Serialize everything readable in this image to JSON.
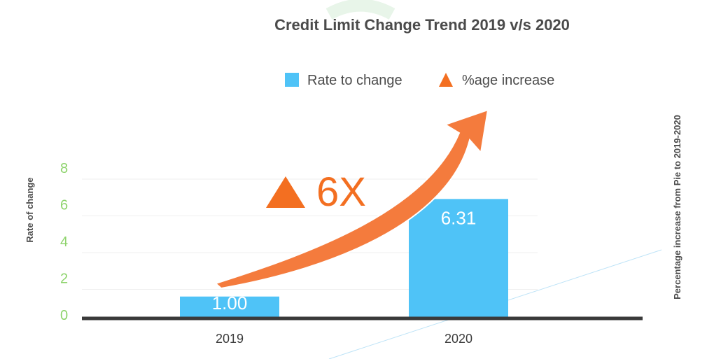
{
  "chart_data": {
    "type": "bar",
    "title": "Credit Limit Change Trend 2019 v/s 2020",
    "categories": [
      "2019",
      "2020"
    ],
    "series": [
      {
        "name": "Rate to change",
        "values": [
          1.0,
          6.31
        ],
        "labels": [
          "1.00",
          "6.31"
        ],
        "color": "#4fc3f7"
      }
    ],
    "legend": [
      {
        "label": "Rate to change",
        "marker": "square",
        "color": "#4fc3f7"
      },
      {
        "label": "%age increase",
        "marker": "triangle",
        "color": "#f36f21"
      }
    ],
    "ylabel": "Rate of change",
    "y2label": "Percentage increase from Pie to 2019-2020",
    "yticks": [
      "0",
      "2",
      "4",
      "6",
      "8"
    ],
    "ylim": [
      0,
      8
    ],
    "annotation": {
      "text": "6X",
      "marker": "triangle-up-icon",
      "color": "#f36f21"
    },
    "legend_position": "top-right"
  }
}
